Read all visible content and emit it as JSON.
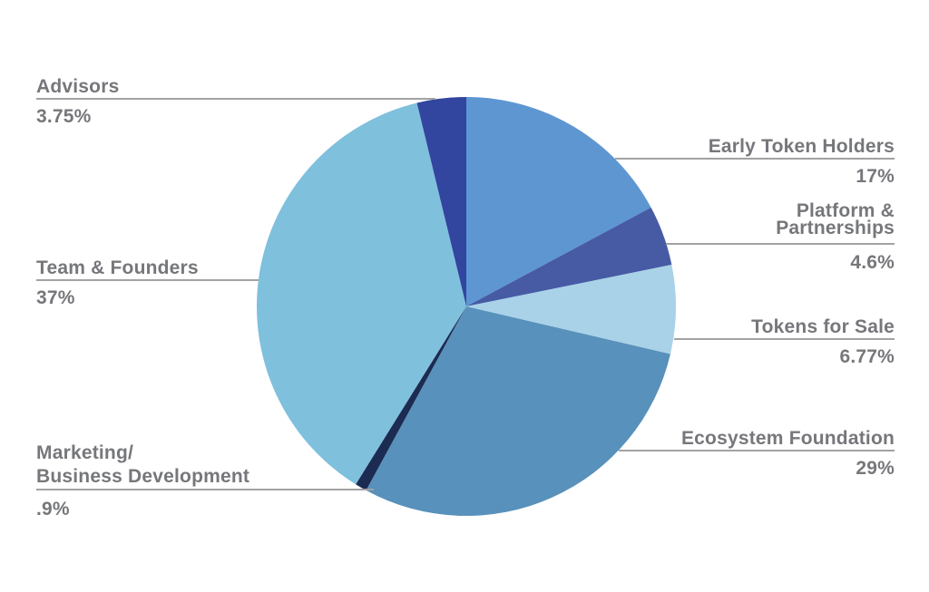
{
  "chart_data": {
    "type": "pie",
    "direction": "clockwise",
    "start_angle_deg": 0,
    "legend_position": "none",
    "label_style": "external-callouts-with-leader-lines",
    "slices": [
      {
        "label": "Early Token Holders",
        "label_lines": [
          "Early Token Holders"
        ],
        "value": 17,
        "value_label": "17%",
        "color": "#5e96d2",
        "callout_side": "right"
      },
      {
        "label": "Platform & Partnerships",
        "label_lines": [
          "Platform &",
          "Partnerships"
        ],
        "value": 4.6,
        "value_label": "4.6%",
        "color": "#475ba5",
        "callout_side": "right"
      },
      {
        "label": "Tokens for Sale",
        "label_lines": [
          "Tokens for Sale"
        ],
        "value": 6.77,
        "value_label": "6.77%",
        "color": "#a9d2e8",
        "callout_side": "right"
      },
      {
        "label": "Ecosystem Foundation",
        "label_lines": [
          "Ecosystem Foundation"
        ],
        "value": 29,
        "value_label": "29%",
        "color": "#5891bb",
        "callout_side": "right"
      },
      {
        "label": "Marketing/Business Development",
        "label_lines": [
          "Marketing/",
          "Business Development"
        ],
        "value": 0.9,
        "value_label": ".9%",
        "color": "#1c2b52",
        "callout_side": "left"
      },
      {
        "label": "Team & Founders",
        "label_lines": [
          "Team & Founders"
        ],
        "value": 37,
        "value_label": "37%",
        "color": "#7fc0dd",
        "callout_side": "left"
      },
      {
        "label": "Advisors",
        "label_lines": [
          "Advisors"
        ],
        "value": 3.75,
        "value_label": "3.75%",
        "color": "#32459f",
        "callout_side": "left"
      }
    ],
    "colors": {
      "label_text": "#76777b",
      "leader_line": "#a2a2a2",
      "background": "#ffffff"
    }
  }
}
